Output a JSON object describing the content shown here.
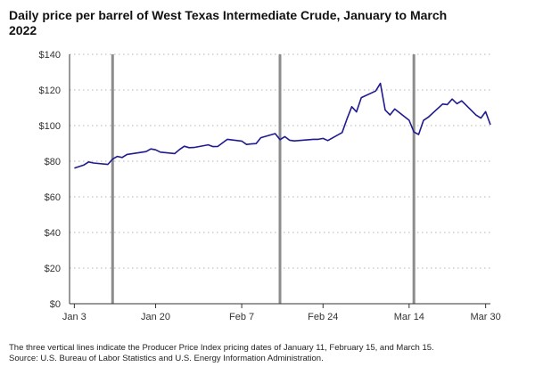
{
  "title": "Daily price per barrel of West Texas Intermediate Crude, January to March 2022",
  "notes": [
    "The three vertical lines indicate the Producer Price Index pricing dates of January 11, February 15, and March 15.",
    "Source: U.S. Bureau of Labor Statistics and U.S. Energy Information Administration."
  ],
  "colors": {
    "line": "#1f1a8f",
    "ref_line": "#8c8c8c",
    "grid": "#b5b5b5"
  },
  "chart_data": {
    "type": "line",
    "title": "Daily price per barrel of West Texas Intermediate Crude, January to March 2022",
    "xlabel": "",
    "ylabel": "",
    "ylim": [
      0,
      140
    ],
    "yticks": [
      0,
      20,
      40,
      60,
      80,
      100,
      120,
      140
    ],
    "ytick_labels": [
      "$0",
      "$20",
      "$40",
      "$60",
      "$80",
      "$100",
      "$120",
      "$140"
    ],
    "xlim": [
      "2022-01-02",
      "2022-03-31"
    ],
    "xticks": [
      "2022-01-03",
      "2022-01-20",
      "2022-02-07",
      "2022-02-24",
      "2022-03-14",
      "2022-03-30"
    ],
    "xtick_labels": [
      "Jan 3",
      "Jan 20",
      "Feb 7",
      "Feb 24",
      "Mar 14",
      "Mar 30"
    ],
    "grid": true,
    "reference_lines": [
      "2022-01-11",
      "2022-02-15",
      "2022-03-15"
    ],
    "series": [
      {
        "name": "",
        "x": [
          "2022-01-03",
          "2022-01-04",
          "2022-01-05",
          "2022-01-06",
          "2022-01-07",
          "2022-01-10",
          "2022-01-11",
          "2022-01-12",
          "2022-01-13",
          "2022-01-14",
          "2022-01-18",
          "2022-01-19",
          "2022-01-20",
          "2022-01-21",
          "2022-01-24",
          "2022-01-25",
          "2022-01-26",
          "2022-01-27",
          "2022-01-28",
          "2022-01-31",
          "2022-02-01",
          "2022-02-02",
          "2022-02-03",
          "2022-02-04",
          "2022-02-07",
          "2022-02-08",
          "2022-02-09",
          "2022-02-10",
          "2022-02-11",
          "2022-02-14",
          "2022-02-15",
          "2022-02-16",
          "2022-02-17",
          "2022-02-18",
          "2022-02-22",
          "2022-02-23",
          "2022-02-24",
          "2022-02-25",
          "2022-02-28",
          "2022-03-01",
          "2022-03-02",
          "2022-03-03",
          "2022-03-04",
          "2022-03-07",
          "2022-03-08",
          "2022-03-09",
          "2022-03-10",
          "2022-03-11",
          "2022-03-14",
          "2022-03-15",
          "2022-03-16",
          "2022-03-17",
          "2022-03-18",
          "2022-03-21",
          "2022-03-22",
          "2022-03-23",
          "2022-03-24",
          "2022-03-25",
          "2022-03-28",
          "2022-03-29",
          "2022-03-30",
          "2022-03-31"
        ],
        "values": [
          76.1,
          77.0,
          77.9,
          79.6,
          79.0,
          78.2,
          81.2,
          82.7,
          82.1,
          83.8,
          85.4,
          86.9,
          86.4,
          85.1,
          84.3,
          86.6,
          88.4,
          87.6,
          87.7,
          89.2,
          88.2,
          88.3,
          90.3,
          92.3,
          91.3,
          89.4,
          89.7,
          89.9,
          93.2,
          95.5,
          92.1,
          93.8,
          91.8,
          91.4,
          92.3,
          92.3,
          92.8,
          91.6,
          96.1,
          103.7,
          110.6,
          107.7,
          115.7,
          119.4,
          123.7,
          108.7,
          106.0,
          109.3,
          103.0,
          96.4,
          95.0,
          102.9,
          104.7,
          112.1,
          111.8,
          114.9,
          112.3,
          113.9,
          105.9,
          104.2,
          107.8,
          100.5
        ]
      }
    ]
  }
}
